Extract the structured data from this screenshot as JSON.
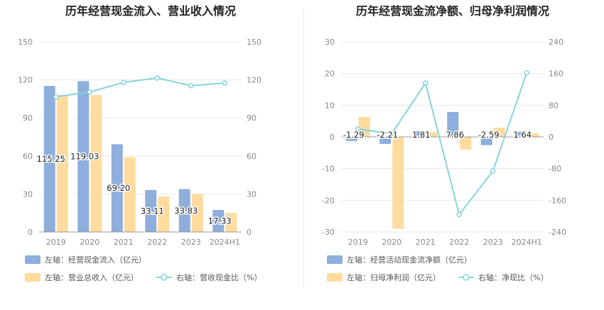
{
  "colors": {
    "bar1": "#8eaedc",
    "bar2": "#ffdb9e",
    "line": "#87d3dc",
    "grid": "#e8e8e8",
    "axis": "#999999"
  },
  "chart_data": [
    {
      "type": "bar",
      "title": "历年经营现金流入、营业收入情况",
      "categories": [
        "2019",
        "2020",
        "2021",
        "2022",
        "2023",
        "2024H1"
      ],
      "y_left_ticks": [
        "150",
        "120",
        "90",
        "60",
        "30",
        "0"
      ],
      "y_right_ticks": [
        "150",
        "120",
        "90",
        "60",
        "30",
        "0"
      ],
      "ylim_left": [
        0,
        150
      ],
      "ylim_right": [
        0,
        150
      ],
      "series": [
        {
          "name": "左轴：经营现金流入（亿元）",
          "kind": "bar",
          "axis": "left",
          "values": [
            115.25,
            119.03,
            69.2,
            33.11,
            33.83,
            17.33
          ],
          "data_labels": [
            "115.25",
            "119.03",
            "69.20",
            "33.11",
            "33.83",
            "17.33"
          ]
        },
        {
          "name": "左轴：营业总收入（亿元）",
          "kind": "bar",
          "axis": "left",
          "values": [
            108,
            108,
            59,
            28,
            30,
            15
          ]
        },
        {
          "name": "右轴：营收现金比（%）",
          "kind": "line",
          "axis": "right",
          "values": [
            106.7,
            110.4,
            118,
            121.5,
            115.5,
            117.5
          ]
        }
      ]
    },
    {
      "type": "bar",
      "title": "历年经营现金流净额、归母净利润情况",
      "categories": [
        "2019",
        "2020",
        "2021",
        "2022",
        "2023",
        "2024H1"
      ],
      "y_left_ticks": [
        "30",
        "20",
        "10",
        "0",
        "-10",
        "-20",
        "-30"
      ],
      "y_right_ticks": [
        "240",
        "160",
        "80",
        "0",
        "-80",
        "-160",
        "-240"
      ],
      "ylim_left": [
        -30,
        30
      ],
      "ylim_right": [
        -240,
        240
      ],
      "series": [
        {
          "name": "左轴：经营活动现金流净额（亿元）",
          "kind": "bar",
          "axis": "left",
          "values": [
            -1.29,
            -2.21,
            1.81,
            7.86,
            -2.59,
            1.64
          ],
          "data_labels": [
            "-1.29",
            "-2.21",
            "1.81",
            "7.86",
            "-2.59",
            "1.64"
          ]
        },
        {
          "name": "左轴：归母净利润（亿元）",
          "kind": "bar",
          "axis": "left",
          "values": [
            6.3,
            -29,
            1.5,
            -4,
            2.9,
            1.2
          ]
        },
        {
          "name": "右轴：净现比（%）",
          "kind": "line",
          "axis": "right",
          "values": [
            20,
            8,
            136,
            -196,
            -86,
            162
          ]
        }
      ]
    }
  ]
}
